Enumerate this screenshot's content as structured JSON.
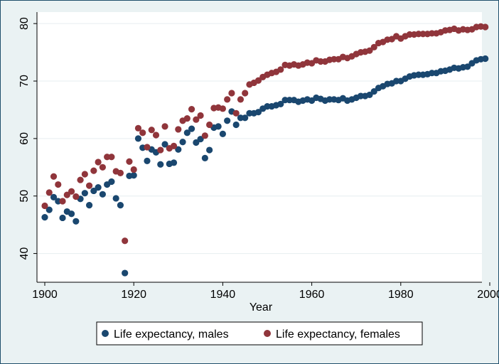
{
  "chart_data": {
    "type": "scatter",
    "title": "",
    "xlabel": "Year",
    "ylabel": "",
    "xlim": [
      1900,
      2000
    ],
    "ylim": [
      35,
      82
    ],
    "xticks": [
      1900,
      1920,
      1940,
      1960,
      1980,
      2000
    ],
    "yticks": [
      40,
      50,
      60,
      70,
      80
    ],
    "grid": "horizontal",
    "legend_position": "bottom",
    "series": [
      {
        "name": "Life expectancy, males",
        "color": "#1a476f",
        "x": [
          1900,
          1901,
          1902,
          1903,
          1904,
          1905,
          1906,
          1907,
          1908,
          1909,
          1910,
          1911,
          1912,
          1913,
          1914,
          1915,
          1916,
          1917,
          1918,
          1919,
          1920,
          1921,
          1922,
          1923,
          1924,
          1925,
          1926,
          1927,
          1928,
          1929,
          1930,
          1931,
          1932,
          1933,
          1934,
          1935,
          1936,
          1937,
          1938,
          1939,
          1940,
          1941,
          1942,
          1943,
          1944,
          1945,
          1946,
          1947,
          1948,
          1949,
          1950,
          1951,
          1952,
          1953,
          1954,
          1955,
          1956,
          1957,
          1958,
          1959,
          1960,
          1961,
          1962,
          1963,
          1964,
          1965,
          1966,
          1967,
          1968,
          1969,
          1970,
          1971,
          1972,
          1973,
          1974,
          1975,
          1976,
          1977,
          1978,
          1979,
          1980,
          1981,
          1982,
          1983,
          1984,
          1985,
          1986,
          1987,
          1988,
          1989,
          1990,
          1991,
          1992,
          1993,
          1994,
          1995,
          1996,
          1997,
          1998,
          1999
        ],
        "y": [
          46.3,
          47.6,
          49.8,
          49.1,
          46.2,
          47.3,
          46.9,
          45.6,
          49.5,
          50.5,
          48.4,
          50.9,
          51.5,
          50.3,
          52.0,
          52.5,
          49.6,
          48.4,
          36.6,
          53.5,
          53.6,
          60.0,
          58.4,
          56.1,
          58.1,
          57.6,
          55.5,
          59.0,
          55.6,
          55.8,
          58.1,
          59.4,
          61.0,
          61.7,
          59.3,
          59.9,
          56.6,
          58.0,
          61.9,
          62.1,
          60.8,
          63.1,
          64.7,
          62.4,
          63.6,
          63.6,
          64.4,
          64.4,
          64.6,
          65.2,
          65.6,
          65.6,
          65.8,
          66.0,
          66.7,
          66.7,
          66.7,
          66.4,
          66.6,
          66.8,
          66.6,
          67.1,
          66.9,
          66.6,
          66.8,
          66.8,
          66.7,
          67.0,
          66.6,
          66.8,
          67.1,
          67.4,
          67.4,
          67.6,
          68.2,
          68.8,
          69.1,
          69.5,
          69.6,
          70.0,
          70.0,
          70.4,
          70.8,
          71.0,
          71.1,
          71.1,
          71.2,
          71.4,
          71.4,
          71.7,
          71.8,
          72.0,
          72.3,
          72.2,
          72.4,
          72.5,
          73.1,
          73.6,
          73.8,
          73.9
        ]
      },
      {
        "name": "Life expectancy, females",
        "color": "#90353b",
        "x": [
          1900,
          1901,
          1902,
          1903,
          1904,
          1905,
          1906,
          1907,
          1908,
          1909,
          1910,
          1911,
          1912,
          1913,
          1914,
          1915,
          1916,
          1917,
          1918,
          1919,
          1920,
          1921,
          1922,
          1923,
          1924,
          1925,
          1926,
          1927,
          1928,
          1929,
          1930,
          1931,
          1932,
          1933,
          1934,
          1935,
          1936,
          1937,
          1938,
          1939,
          1940,
          1941,
          1942,
          1943,
          1944,
          1945,
          1946,
          1947,
          1948,
          1949,
          1950,
          1951,
          1952,
          1953,
          1954,
          1955,
          1956,
          1957,
          1958,
          1959,
          1960,
          1961,
          1962,
          1963,
          1964,
          1965,
          1966,
          1967,
          1968,
          1969,
          1970,
          1971,
          1972,
          1973,
          1974,
          1975,
          1976,
          1977,
          1978,
          1979,
          1980,
          1981,
          1982,
          1983,
          1984,
          1985,
          1986,
          1987,
          1988,
          1989,
          1990,
          1991,
          1992,
          1993,
          1994,
          1995,
          1996,
          1997,
          1998,
          1999
        ],
        "y": [
          48.3,
          50.6,
          53.4,
          52.0,
          49.1,
          50.2,
          50.8,
          49.9,
          52.8,
          53.8,
          51.8,
          54.4,
          55.9,
          55.0,
          56.8,
          56.8,
          54.3,
          54.0,
          42.2,
          56.0,
          54.6,
          61.8,
          61.0,
          58.5,
          61.5,
          60.6,
          58.0,
          62.1,
          58.3,
          58.7,
          61.6,
          63.1,
          63.5,
          65.1,
          63.3,
          64.0,
          60.5,
          62.4,
          65.3,
          65.4,
          65.2,
          66.8,
          67.9,
          64.4,
          66.8,
          67.9,
          69.4,
          69.7,
          70.1,
          70.7,
          71.1,
          71.4,
          71.6,
          72.0,
          72.8,
          72.7,
          72.9,
          72.7,
          72.9,
          73.2,
          73.1,
          73.6,
          73.4,
          73.4,
          73.7,
          73.8,
          73.8,
          74.2,
          74.0,
          74.3,
          74.7,
          75.0,
          75.1,
          75.3,
          75.9,
          76.6,
          76.8,
          77.2,
          77.3,
          77.8,
          77.4,
          77.8,
          78.1,
          78.1,
          78.2,
          78.2,
          78.2,
          78.3,
          78.3,
          78.5,
          78.8,
          78.9,
          79.1,
          78.8,
          79.0,
          78.9,
          79.0,
          79.4,
          79.5,
          79.4
        ]
      }
    ]
  }
}
